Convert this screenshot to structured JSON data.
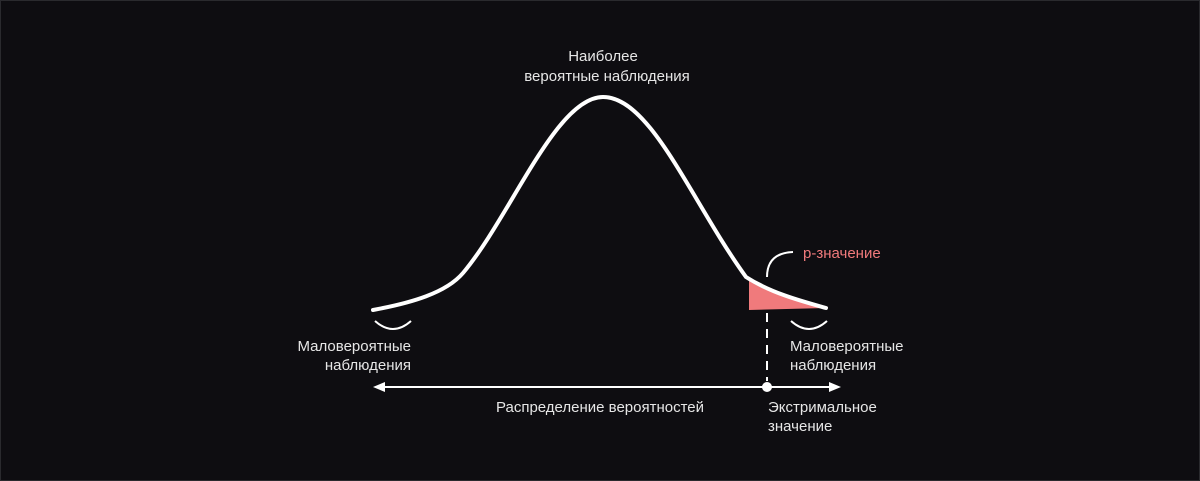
{
  "labels": {
    "peak_line1": "Наиболее",
    "peak_line2": "вероятные наблюдения",
    "left_tail_line1": "Маловероятные",
    "left_tail_line2": "наблюдения",
    "right_tail_line1": "Маловероятные",
    "right_tail_line2": "наблюдения",
    "p_value": "p-значение",
    "axis_label": "Распределение вероятностей",
    "extreme_line1": "Экстримальное",
    "extreme_line2": "значение"
  },
  "colors": {
    "background": "#0e0d11",
    "curve": "#ffffff",
    "p_value_area": "#f07a7c",
    "p_value_text": "#f07a7c"
  }
}
